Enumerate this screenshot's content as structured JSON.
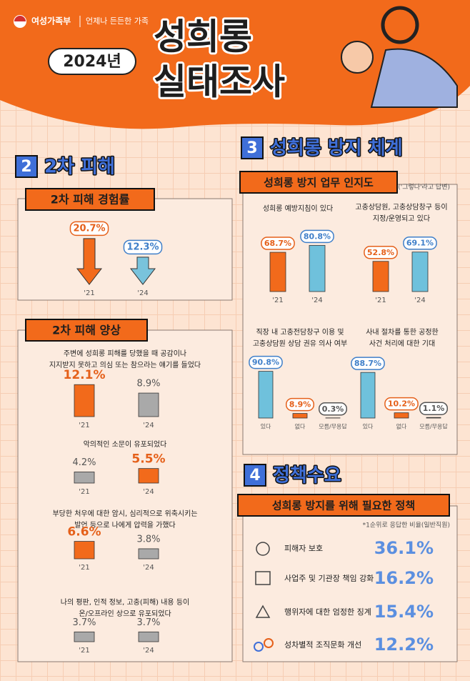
{
  "header": {
    "logo": "여성가족부",
    "slogan": "언제나 든든한 가족",
    "year": "2024년",
    "title_lines": [
      "성희롱",
      "실태조사"
    ]
  },
  "sections": [
    {
      "number": "2",
      "title": "2차 피해"
    },
    {
      "number": "3",
      "title": "성희롱 방지 체계"
    },
    {
      "number": "4",
      "title": "정책수요"
    }
  ],
  "panels": [
    "2차 피해 경험률",
    "2차 피해 양상",
    "성희롱 방지 업무 인지도",
    "성희롱 방지를 위해 필요한 정책"
  ],
  "notes": [
    "('그렇다'라고 답변)",
    "*1순위로 응답한 비율(일반직원)"
  ],
  "chart_data": [
    {
      "type": "arrow",
      "categories": [
        "'21",
        "'24"
      ],
      "values": [
        20.7,
        12.3
      ],
      "value_labels": [
        "20.7%",
        "12.3%"
      ],
      "colors": [
        "#f26a1b",
        "#79c3dc"
      ],
      "label_colors": [
        "#e5601a",
        "#3f7fc9"
      ]
    },
    {
      "type": "bar",
      "title": [
        "주변에 성희롱 피해를 당했을 때 공감이나",
        "지지받지 못하고 의심 또는 참으라는 얘기를 들었다"
      ],
      "categories": [
        "'21",
        "'24"
      ],
      "values": [
        12.1,
        8.9
      ],
      "value_labels": [
        "12.1%",
        "8.9%"
      ],
      "colors": [
        "#f26a1b",
        "#a9a9a9"
      ],
      "label_colors": [
        "#e5601a",
        "#555555"
      ]
    },
    {
      "type": "bar",
      "title": [
        "악의적인 소문이 유포되었다"
      ],
      "categories": [
        "'21",
        "'24"
      ],
      "values": [
        4.2,
        5.5
      ],
      "value_labels": [
        "4.2%",
        "5.5%"
      ],
      "colors": [
        "#a9a9a9",
        "#f26a1b"
      ],
      "label_colors": [
        "#555555",
        "#e5601a"
      ]
    },
    {
      "type": "bar",
      "title": [
        "부당한 처우에 대한 암시, 심리적으로 위축시키는",
        "발언 등으로 나에게 압력을 가했다"
      ],
      "categories": [
        "'21",
        "'24"
      ],
      "values": [
        6.6,
        3.8
      ],
      "value_labels": [
        "6.6%",
        "3.8%"
      ],
      "colors": [
        "#f26a1b",
        "#a9a9a9"
      ],
      "label_colors": [
        "#e5601a",
        "#555555"
      ]
    },
    {
      "type": "bar",
      "title": [
        "나의 평판, 인적 정보, 고충(피해) 내용 등이",
        "온/오프라인 상으로 유포되었다"
      ],
      "categories": [
        "'21",
        "'24"
      ],
      "values": [
        3.7,
        3.7
      ],
      "value_labels": [
        "3.7%",
        "3.7%"
      ],
      "colors": [
        "#a9a9a9",
        "#a9a9a9"
      ],
      "label_colors": [
        "#555555",
        "#555555"
      ]
    },
    {
      "type": "bar",
      "title": [
        "성희롱 예방지침이 있다"
      ],
      "categories": [
        "'21",
        "'24"
      ],
      "values": [
        68.7,
        80.8
      ],
      "value_labels": [
        "68.7%",
        "80.8%"
      ],
      "colors": [
        "#f26a1b",
        "#6fc1dc"
      ],
      "label_colors": [
        "#e5601a",
        "#3f7fc9"
      ]
    },
    {
      "type": "bar",
      "title": [
        "고충상담원, 고충상담창구 등이",
        "지정/운영되고 있다"
      ],
      "categories": [
        "'21",
        "'24"
      ],
      "values": [
        52.8,
        69.1
      ],
      "value_labels": [
        "52.8%",
        "69.1%"
      ],
      "colors": [
        "#f26a1b",
        "#6fc1dc"
      ],
      "label_colors": [
        "#e5601a",
        "#3f7fc9"
      ]
    },
    {
      "type": "bar",
      "title": [
        "직장 내 고충전담창구 이용 및",
        "고충상담원 상담 권유 의사 여부"
      ],
      "categories": [
        "있다",
        "없다",
        "모름/무응답"
      ],
      "values": [
        90.8,
        8.9,
        0.3
      ],
      "value_labels": [
        "90.8%",
        "8.9%",
        "0.3%"
      ],
      "colors": [
        "#6fc1dc",
        "#f26a1b",
        "#a9a9a9"
      ],
      "label_colors": [
        "#3f7fc9",
        "#e5601a",
        "#555555"
      ]
    },
    {
      "type": "bar",
      "title": [
        "사내 절차를 통한 공정한",
        "사건 처리에 대한 기대"
      ],
      "categories": [
        "있다",
        "없다",
        "모름/무응답"
      ],
      "values": [
        88.7,
        10.2,
        1.1
      ],
      "value_labels": [
        "88.7%",
        "10.2%",
        "1.1%"
      ],
      "colors": [
        "#6fc1dc",
        "#f26a1b",
        "#a9a9a9"
      ],
      "label_colors": [
        "#3f7fc9",
        "#e5601a",
        "#555555"
      ]
    },
    {
      "type": "ranking",
      "categories": [
        "피해자 보호",
        "사업주 및 기관장 책임 강화",
        "행위자에 대한 엄정한 징계",
        "성차별적 조직문화 개선"
      ],
      "values": [
        36.1,
        16.2,
        15.4,
        12.2
      ],
      "value_labels": [
        "36.1%",
        "16.2%",
        "15.4%",
        "12.2%"
      ],
      "color": "#5b8fe0"
    }
  ]
}
